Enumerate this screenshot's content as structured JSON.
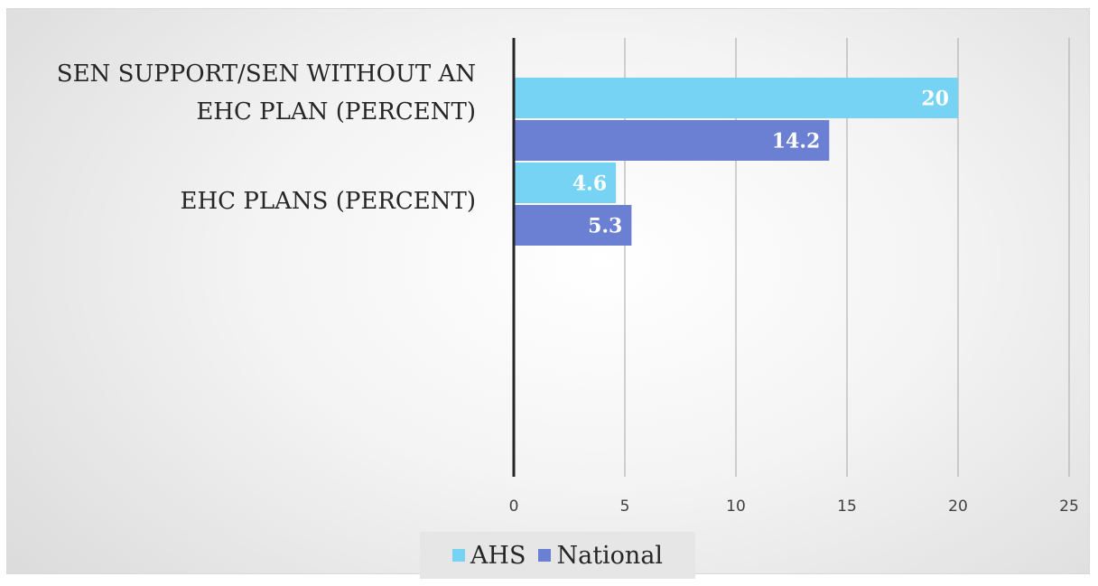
{
  "chart_data": {
    "type": "bar",
    "orientation": "horizontal",
    "categories": [
      "SEN SUPPORT/SEN WITHOUT AN EHC PLAN (PERCENT)",
      "EHC PLANS (PERCENT)"
    ],
    "category_lines": [
      [
        "SEN SUPPORT/SEN WITHOUT AN",
        "EHC PLAN (PERCENT)"
      ],
      [
        "EHC PLANS (PERCENT)"
      ]
    ],
    "series": [
      {
        "name": "AHS",
        "values": [
          20,
          4.6
        ],
        "color": "#76d3f3"
      },
      {
        "name": "National",
        "values": [
          14.2,
          5.3
        ],
        "color": "#6b7fd3"
      }
    ],
    "xlim": [
      0,
      25
    ],
    "xticks": [
      "0",
      "5",
      "10",
      "15",
      "20",
      "25"
    ],
    "data_labels": [
      "20",
      "14.2",
      "4.6",
      "5.3"
    ],
    "grid": true,
    "legend_position": "bottom"
  }
}
